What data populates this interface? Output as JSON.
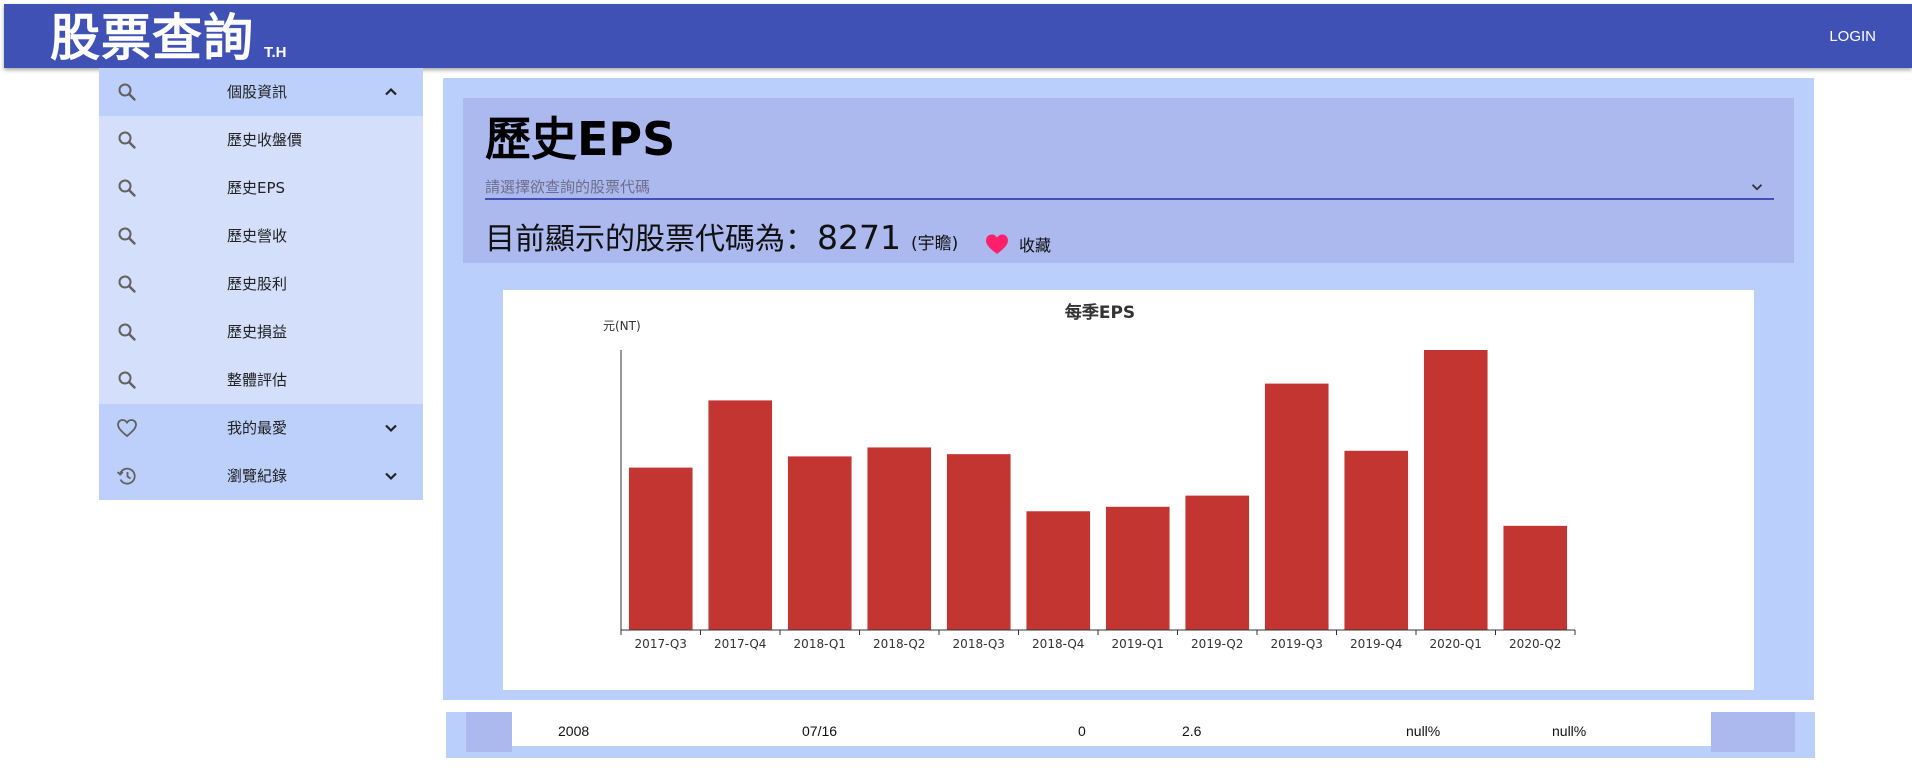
{
  "appbar": {
    "title": "股票查詢",
    "subtitle": "T.H",
    "login": "LOGIN"
  },
  "sidebar": {
    "items": [
      {
        "label": "個股資訊",
        "icon": "search-icon",
        "group": true,
        "chevron": "up"
      },
      {
        "label": "歷史收盤價",
        "icon": "search-icon"
      },
      {
        "label": "歷史EPS",
        "icon": "search-icon"
      },
      {
        "label": "歷史營收",
        "icon": "search-icon"
      },
      {
        "label": "歷史股利",
        "icon": "search-icon"
      },
      {
        "label": "歷史損益",
        "icon": "search-icon"
      },
      {
        "label": "整體評估",
        "icon": "search-icon"
      },
      {
        "label": "我的最愛",
        "icon": "heart-outline-icon",
        "group": true,
        "chevron": "down"
      },
      {
        "label": "瀏覽紀錄",
        "icon": "history-icon",
        "group": true,
        "chevron": "down"
      }
    ]
  },
  "main": {
    "title": "歷史EPS",
    "select_placeholder": "請選擇欲查詢的股票代碼",
    "current_prefix": "目前顯示的股票代碼為：",
    "current_code": "8271",
    "current_name": "(宇瞻)",
    "favorite_label": "收藏"
  },
  "colors": {
    "appbar": "#3f51b5",
    "bar": "#c23531",
    "heart": "#ff1f6b",
    "panel": "#bbcffc"
  },
  "chart_data": {
    "type": "bar",
    "title": "每季EPS",
    "ylabel": "元(NT)",
    "xlabel": "",
    "categories": [
      "2017-Q3",
      "2017-Q4",
      "2018-Q1",
      "2018-Q2",
      "2018-Q3",
      "2018-Q4",
      "2019-Q1",
      "2019-Q2",
      "2019-Q3",
      "2019-Q4",
      "2020-Q1",
      "2020-Q2"
    ],
    "values": [
      1.45,
      2.05,
      1.55,
      1.63,
      1.57,
      1.06,
      1.1,
      1.2,
      2.2,
      1.6,
      2.5,
      0.93
    ],
    "ylim": [
      0,
      2.5
    ],
    "grid": false,
    "yaxis_tick_labels": false
  },
  "data_row": {
    "year": "2008",
    "date": "07/16",
    "v1": "0",
    "v2": "2.6",
    "p1": "null%",
    "p2": "null%"
  }
}
